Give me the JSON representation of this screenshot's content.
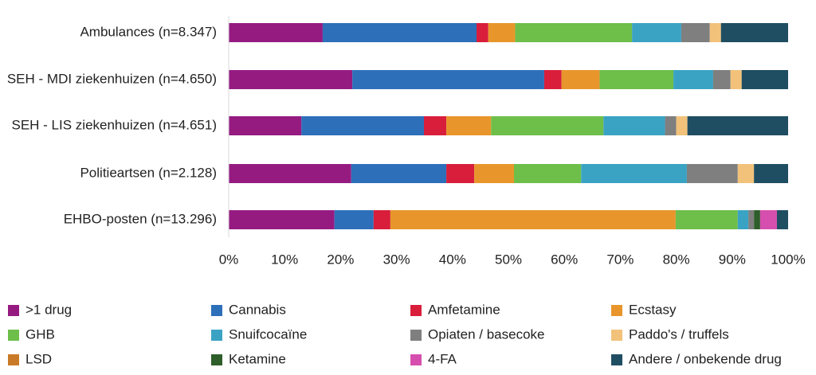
{
  "chart_data": {
    "type": "stacked-bar-horizontal",
    "categories": [
      "Ambulances (n=8.347)",
      "SEH - MDI ziekenhuizen (n=4.650)",
      "SEH - LIS ziekenhuizen (n=4.651)",
      "Politieartsen (n=2.128)",
      "EHBO-posten (n=13.296)"
    ],
    "series": [
      {
        "name": ">1 drug",
        "color": "#951b81",
        "values": [
          16.8,
          22.1,
          13.0,
          21.9,
          18.9
        ]
      },
      {
        "name": "Cannabis",
        "color": "#2e6fba",
        "values": [
          27.5,
          34.3,
          21.9,
          17.0,
          7.0
        ]
      },
      {
        "name": "Amfetamine",
        "color": "#d81e3b",
        "values": [
          2.1,
          3.1,
          4.0,
          5.0,
          3.0
        ]
      },
      {
        "name": "Ecstasy",
        "color": "#e8962b",
        "values": [
          4.8,
          6.8,
          8.0,
          7.1,
          51.0
        ]
      },
      {
        "name": "GHB",
        "color": "#6ebe4a",
        "values": [
          20.9,
          13.2,
          20.1,
          12.0,
          11.1
        ]
      },
      {
        "name": "Snuifcocaïne",
        "color": "#3aa3c4",
        "values": [
          8.8,
          7.1,
          11.0,
          18.9,
          1.9
        ]
      },
      {
        "name": "Opiaten / basecoke",
        "color": "#7f7f7f",
        "values": [
          5.1,
          3.1,
          2.0,
          9.1,
          1.0
        ]
      },
      {
        "name": "Paddo's / truffels",
        "color": "#f2c27b",
        "values": [
          2.0,
          2.0,
          2.0,
          2.9,
          0
        ]
      },
      {
        "name": "LSD",
        "color": "#c97a26",
        "values": [
          0,
          0,
          0,
          0,
          0
        ]
      },
      {
        "name": "Ketamine",
        "color": "#2e5e2a",
        "values": [
          0,
          0,
          0,
          0,
          1.1
        ]
      },
      {
        "name": "4-FA",
        "color": "#d64fae",
        "values": [
          0,
          0,
          0,
          0,
          3.0
        ]
      },
      {
        "name": "Andere / onbekende drug",
        "color": "#1f4e63",
        "values": [
          12.0,
          8.3,
          18.0,
          6.1,
          2.0
        ]
      }
    ],
    "xlim": [
      0,
      100
    ],
    "xticks": [
      {
        "value": 0,
        "label": "0%"
      },
      {
        "value": 10,
        "label": "10%"
      },
      {
        "value": 20,
        "label": "20%"
      },
      {
        "value": 30,
        "label": "30%"
      },
      {
        "value": 40,
        "label": "40%"
      },
      {
        "value": 50,
        "label": "50%"
      },
      {
        "value": 60,
        "label": "60%"
      },
      {
        "value": 70,
        "label": "70%"
      },
      {
        "value": 80,
        "label": "80%"
      },
      {
        "value": 90,
        "label": "90%"
      },
      {
        "value": 100,
        "label": "100%"
      }
    ],
    "legend": "bottom"
  }
}
